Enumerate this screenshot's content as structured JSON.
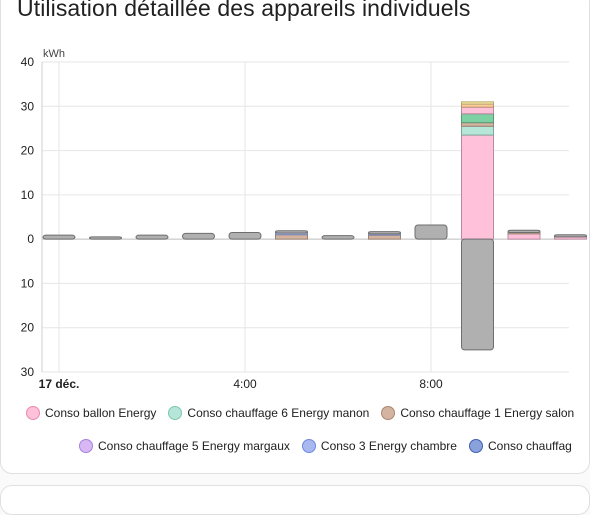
{
  "card": {
    "title": "Utilisation détaillée des appareils individuels"
  },
  "chart_data": {
    "type": "bar",
    "unit": "kWh",
    "ylim": [
      -30,
      40
    ],
    "y_ticks": [
      {
        "value": 40,
        "label": "40"
      },
      {
        "value": 30,
        "label": "30"
      },
      {
        "value": 20,
        "label": "20"
      },
      {
        "value": 10,
        "label": "10"
      },
      {
        "value": 0,
        "label": "0"
      },
      {
        "value": -10,
        "label": "10"
      },
      {
        "value": -20,
        "label": "20"
      },
      {
        "value": -30,
        "label": "30"
      }
    ],
    "x_ticks": [
      {
        "hour": 0,
        "label": "17 déc.",
        "bold": true
      },
      {
        "hour": 4,
        "label": "4:00",
        "bold": false
      },
      {
        "hour": 8,
        "label": "8:00",
        "bold": false
      }
    ],
    "series": [
      {
        "name": "Conso ballon Energy",
        "color": "#ffc0da",
        "border": "#e88bb0"
      },
      {
        "name": "Conso chauffage 6 Energy manon",
        "color": "#b5e6d8",
        "border": "#7cc7b0"
      },
      {
        "name": "Conso chauffage 1 Energy salon",
        "color": "#d4b4a0",
        "border": "#a88670"
      },
      {
        "name": "Conso chauffage 5 Energy margaux",
        "color": "#d7b8f5",
        "border": "#a77fdc"
      },
      {
        "name": "Conso 3 Energy chambre",
        "color": "#a8b8f0",
        "border": "#6f88dc"
      },
      {
        "name": "Conso chauffag",
        "color": "#8aa2dc",
        "border": "#3f5fb0"
      }
    ],
    "extra_segment_colors": {
      "green": "#7ed1a3",
      "untracked": "#b0b0b0",
      "orange_top": "#ffcc99",
      "yellow_top": "#fce9a0"
    },
    "bars": [
      {
        "hour": 0,
        "untracked": 0.9
      },
      {
        "hour": 1,
        "untracked": 0.5
      },
      {
        "hour": 2,
        "untracked": 0.9
      },
      {
        "hour": 3,
        "untracked": 1.3
      },
      {
        "hour": 4,
        "untracked": 1.5
      },
      {
        "hour": 5,
        "stack": [
          [
            "#d4b4a0",
            1.0
          ],
          [
            "#a8b8f0",
            0.4
          ]
        ],
        "untracked": 0.5
      },
      {
        "hour": 6,
        "untracked": 0.8
      },
      {
        "hour": 7,
        "stack": [
          [
            "#d4b4a0",
            0.9
          ],
          [
            "#a8b8f0",
            0.3
          ]
        ],
        "untracked": 0.5
      },
      {
        "hour": 8,
        "untracked": 3.2
      },
      {
        "hour": 9,
        "stack": [
          [
            "#ffc0da",
            23.5
          ],
          [
            "#b5e6d8",
            2.0
          ],
          [
            "#d4b4a0",
            0.8
          ],
          [
            "#7ed1a3",
            2.0
          ],
          [
            "#ffc0da",
            1.5
          ],
          [
            "#ffcc99",
            0.7
          ],
          [
            "#fce9a0",
            0.5
          ]
        ],
        "negative_untracked": -25.0
      },
      {
        "hour": 10,
        "stack": [
          [
            "#ffc0da",
            1.2
          ],
          [
            "#d4b4a0",
            0.3
          ]
        ],
        "untracked": 0.5
      },
      {
        "hour": 11,
        "stack": [
          [
            "#ffc0da",
            0.5
          ]
        ],
        "untracked": 0.5
      }
    ]
  },
  "legend": {
    "row1": [
      "Conso ballon Energy",
      "Conso chauffage 6 Energy manon",
      "Conso chauffage 1 Energy salon"
    ],
    "row2": [
      "Conso chauffage 5 Energy margaux",
      "Conso 3 Energy chambre",
      "Conso chauffag"
    ]
  }
}
